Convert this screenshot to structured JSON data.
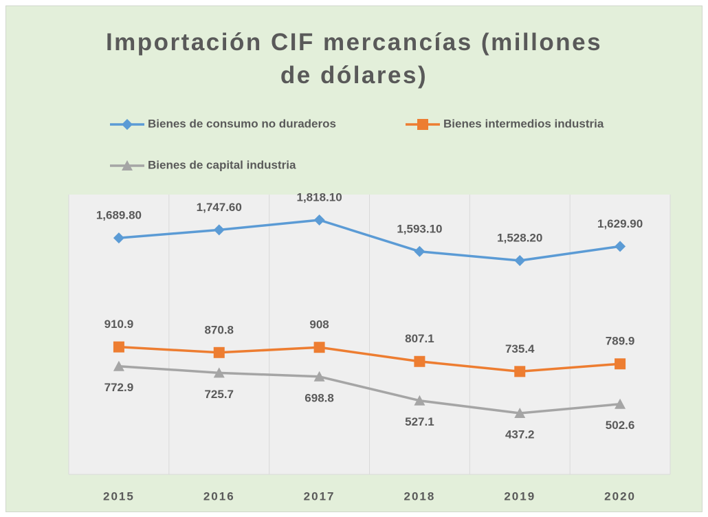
{
  "chart_data": {
    "type": "line",
    "title": "Importación CIF mercancías (millones de dólares)",
    "categories": [
      "2015",
      "2016",
      "2017",
      "2018",
      "2019",
      "2020"
    ],
    "series": [
      {
        "name": "Bienes de consumo no duraderos",
        "color": "#5b9bd5",
        "marker": "diamond",
        "label_position": "above",
        "values": [
          1689.8,
          1747.6,
          1818.1,
          1593.1,
          1528.2,
          1629.9
        ],
        "value_labels": [
          "1,689.80",
          "1,747.60",
          "1,818.10",
          "1,593.10",
          "1,528.20",
          "1,629.90"
        ]
      },
      {
        "name": "Bienes intermedios industria",
        "color": "#ed7d31",
        "marker": "square",
        "label_position": "above",
        "values": [
          910.9,
          870.8,
          908,
          807.1,
          735.4,
          789.9
        ],
        "value_labels": [
          "910.9",
          "870.8",
          "908",
          "807.1",
          "735.4",
          "789.9"
        ]
      },
      {
        "name": "Bienes de capital industria",
        "color": "#a5a5a5",
        "marker": "triangle",
        "label_position": "below",
        "values": [
          772.9,
          725.7,
          698.8,
          527.1,
          437.2,
          502.6
        ],
        "value_labels": [
          "772.9",
          "725.7",
          "698.8",
          "527.1",
          "437.2",
          "502.6"
        ]
      }
    ],
    "ylim": [
      0,
      2000
    ],
    "legend": "top",
    "category_grid": true
  }
}
